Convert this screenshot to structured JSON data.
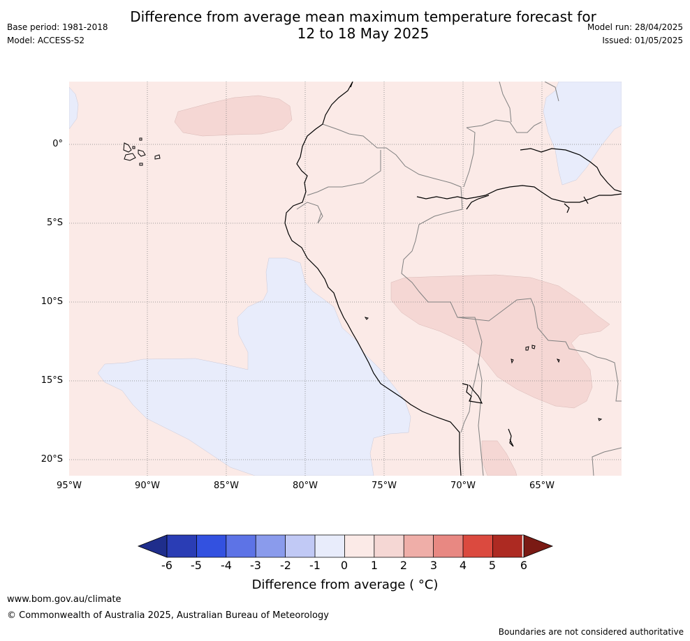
{
  "title": {
    "line1": "Difference from average mean maximum temperature forecast for",
    "line2": "12 to 18 May 2025"
  },
  "meta": {
    "base_period": "Base period: 1981-2018",
    "model": "Model: ACCESS-S2",
    "model_run": "Model run: 28/04/2025",
    "issued": "Issued: 01/05/2025"
  },
  "map": {
    "region": "Western South America",
    "colors": {
      "zero_to_one": "#fbeae7",
      "one_to_two": "#f5d7d4",
      "minus_one_to_zero": "#e8ecfb",
      "coastline": "#000000",
      "borders": "#808080",
      "grid": "#808080"
    },
    "lat_labels": [
      "0°",
      "5°S",
      "10°S",
      "15°S",
      "20°S"
    ],
    "lon_labels": [
      "95°W",
      "90°W",
      "85°W",
      "80°W",
      "75°W",
      "70°W",
      "65°W"
    ]
  },
  "colorbar": {
    "label": "Difference from average ( °C)",
    "label_text": "Difference from average ( °C)",
    "ticks": [
      "-6",
      "-5",
      "-4",
      "-3",
      "-2",
      "-1",
      "0",
      "1",
      "2",
      "3",
      "4",
      "5",
      "6"
    ],
    "colors": [
      "#1f2e8c",
      "#2a3db5",
      "#3351e0",
      "#5d73e6",
      "#8a9bec",
      "#c1c9f5",
      "#e8ecfb",
      "#fbeae7",
      "#f5d7d4",
      "#efaea8",
      "#e88882",
      "#db4a3f",
      "#ad2a22",
      "#7a1a14"
    ]
  },
  "footer": {
    "url": "www.bom.gov.au/climate",
    "copyright": "© Commonwealth of Australia 2025, Australian Bureau of Meteorology",
    "disclaimer": "Boundaries are not considered authoritative"
  }
}
